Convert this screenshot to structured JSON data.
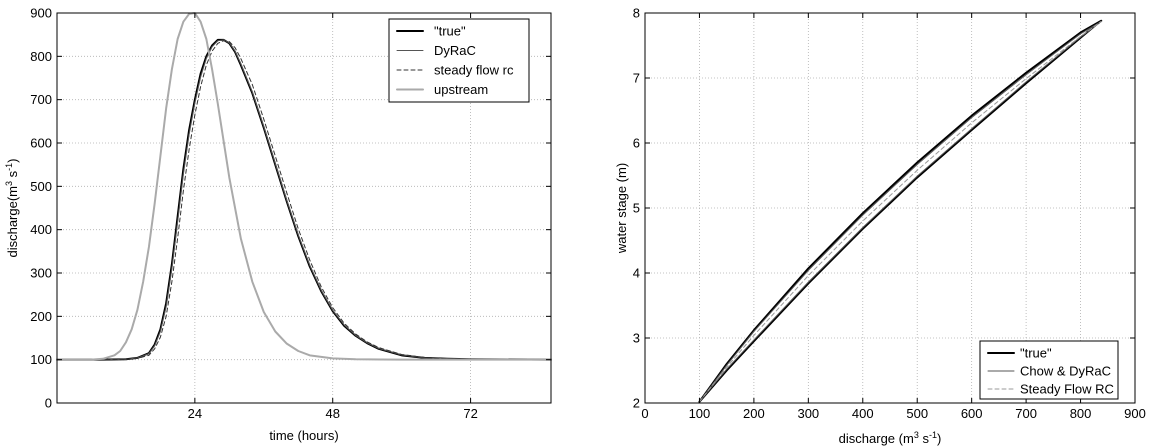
{
  "chart_data": [
    {
      "type": "line",
      "xlabel": "time (hours)",
      "ylabel_main": "discharge(m",
      "ylabel_sup1": "3",
      "ylabel_mid": " s",
      "ylabel_sup2": "-1",
      "ylabel_end": ")",
      "xlim": [
        0,
        86
      ],
      "ylim": [
        0,
        900
      ],
      "xticks": [
        24,
        48,
        72
      ],
      "yticks": [
        0,
        100,
        200,
        300,
        400,
        500,
        600,
        700,
        800,
        900
      ],
      "grid": true,
      "legend_position": "top-right",
      "series": [
        {
          "name": "\"true\"",
          "color": "#000000",
          "style": "solid-thick",
          "x": [
            0,
            8,
            12,
            14,
            16,
            17,
            18,
            19,
            20,
            21,
            22,
            23,
            24,
            25,
            26,
            27,
            28,
            29,
            30,
            31,
            32,
            34,
            36,
            38,
            40,
            42,
            44,
            46,
            48,
            50,
            52,
            54,
            56,
            60,
            64,
            68,
            72,
            86
          ],
          "y": [
            100,
            100,
            101,
            104,
            115,
            135,
            170,
            230,
            320,
            430,
            540,
            630,
            700,
            760,
            800,
            825,
            838,
            838,
            830,
            810,
            780,
            715,
            635,
            550,
            465,
            385,
            315,
            258,
            212,
            178,
            155,
            138,
            125,
            110,
            104,
            102,
            101,
            100
          ]
        },
        {
          "name": "DyRaC",
          "color": "#555555",
          "style": "solid-thin",
          "x": [
            0,
            8,
            12,
            14,
            16,
            17,
            18,
            19,
            20,
            21,
            22,
            23,
            24,
            25,
            26,
            27,
            28,
            29,
            30,
            31,
            32,
            34,
            36,
            38,
            40,
            42,
            44,
            46,
            48,
            50,
            52,
            54,
            56,
            60,
            64,
            68,
            72,
            86
          ],
          "y": [
            100,
            100,
            101,
            104,
            114,
            132,
            165,
            222,
            310,
            418,
            528,
            620,
            692,
            752,
            795,
            822,
            836,
            838,
            831,
            812,
            783,
            718,
            638,
            553,
            468,
            388,
            318,
            260,
            214,
            180,
            156,
            139,
            126,
            111,
            104,
            102,
            101,
            100
          ]
        },
        {
          "name": "steady flow rc",
          "color": "#333333",
          "style": "dashed",
          "x": [
            0,
            8,
            12,
            14,
            16,
            17,
            18,
            19,
            20,
            21,
            22,
            23,
            24,
            25,
            26,
            27,
            28,
            29,
            30,
            31,
            32,
            34,
            36,
            38,
            40,
            42,
            44,
            46,
            48,
            50,
            52,
            54,
            56,
            60,
            64,
            68,
            72,
            86
          ],
          "y": [
            100,
            100,
            101,
            103,
            110,
            125,
            152,
            200,
            280,
            380,
            490,
            585,
            665,
            730,
            780,
            812,
            830,
            836,
            834,
            820,
            795,
            735,
            655,
            570,
            485,
            402,
            330,
            268,
            220,
            184,
            159,
            141,
            128,
            112,
            105,
            102,
            101,
            100
          ]
        },
        {
          "name": "upstream",
          "color": "#aaaaaa",
          "style": "solid-thick",
          "x": [
            0,
            6,
            8,
            10,
            11,
            12,
            13,
            14,
            15,
            16,
            17,
            18,
            19,
            20,
            21,
            22,
            23,
            24,
            25,
            26,
            27,
            28,
            29,
            30,
            32,
            34,
            36,
            38,
            40,
            42,
            44,
            48,
            52,
            60,
            86
          ],
          "y": [
            100,
            100,
            102,
            110,
            120,
            140,
            170,
            215,
            280,
            360,
            460,
            570,
            680,
            770,
            840,
            880,
            898,
            900,
            880,
            840,
            770,
            690,
            605,
            520,
            380,
            280,
            210,
            165,
            137,
            120,
            110,
            103,
            101,
            100,
            100
          ]
        }
      ]
    },
    {
      "type": "line",
      "xlabel_main": "discharge (m",
      "xlabel_sup1": "3",
      "xlabel_mid": " s",
      "xlabel_sup2": "-1",
      "xlabel_end": ")",
      "ylabel": "water stage (m)",
      "xlim": [
        0,
        900
      ],
      "ylim": [
        2,
        8
      ],
      "xticks": [
        0,
        100,
        200,
        300,
        400,
        500,
        600,
        700,
        800,
        900
      ],
      "yticks": [
        2,
        3,
        4,
        5,
        6,
        7,
        8
      ],
      "grid": true,
      "legend_position": "bottom-right",
      "series": [
        {
          "name": "\"true\"",
          "color": "#000000",
          "style": "solid-thick",
          "x": [
            100,
            150,
            200,
            300,
            400,
            500,
            600,
            700,
            800,
            838,
            830,
            800,
            700,
            600,
            500,
            400,
            300,
            200,
            150,
            100
          ],
          "y": [
            2.02,
            2.6,
            3.12,
            4.07,
            4.92,
            5.7,
            6.42,
            7.08,
            7.7,
            7.88,
            7.83,
            7.62,
            6.92,
            6.2,
            5.47,
            4.68,
            3.84,
            2.95,
            2.5,
            2.02
          ]
        },
        {
          "name": "Chow & DyRaC",
          "color": "#555555",
          "style": "solid-thin",
          "x": [
            100,
            150,
            200,
            300,
            400,
            500,
            600,
            700,
            800,
            838,
            830,
            800,
            700,
            600,
            500,
            400,
            300,
            200,
            150,
            100
          ],
          "y": [
            2.02,
            2.58,
            3.1,
            4.04,
            4.89,
            5.67,
            6.39,
            7.05,
            7.68,
            7.87,
            7.82,
            7.63,
            6.94,
            6.22,
            5.49,
            4.7,
            3.86,
            2.97,
            2.52,
            2.02
          ]
        },
        {
          "name": "Steady Flow RC",
          "color": "#999999",
          "style": "dashed",
          "x": [
            100,
            150,
            200,
            300,
            400,
            500,
            600,
            700,
            800,
            838
          ],
          "y": [
            2.02,
            2.55,
            3.04,
            3.96,
            4.8,
            5.58,
            6.31,
            6.99,
            7.64,
            7.87
          ]
        }
      ]
    }
  ]
}
